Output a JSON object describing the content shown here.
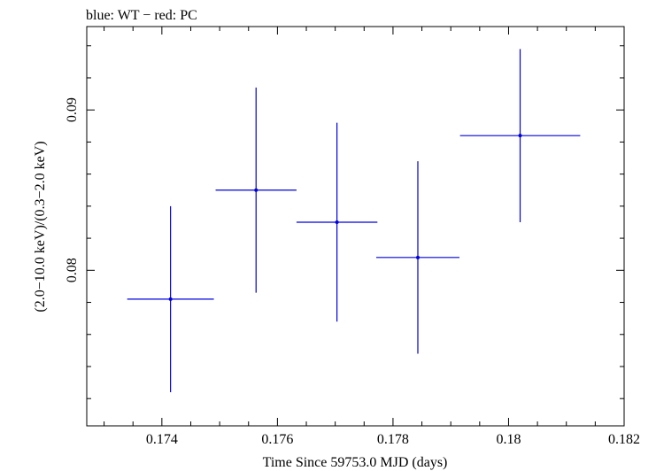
{
  "chart_data": {
    "type": "scatter",
    "title": "blue: WT − red: PC",
    "xlabel": "Time Since 59753.0 MJD (days)",
    "ylabel": "(2.0−10.0 keV)/(0.3−2.0 keV)",
    "xlim": [
      0.1727,
      0.182
    ],
    "ylim": [
      0.0703,
      0.0952
    ],
    "xticks": [
      {
        "value": 0.174,
        "label": "0.174"
      },
      {
        "value": 0.176,
        "label": "0.176"
      },
      {
        "value": 0.178,
        "label": "0.178"
      },
      {
        "value": 0.18,
        "label": "0.18"
      },
      {
        "value": 0.182,
        "label": "0.182"
      }
    ],
    "yticks": [
      {
        "value": 0.08,
        "label": "0.08"
      },
      {
        "value": 0.09,
        "label": "0.09"
      }
    ],
    "x_minor_step": 0.0005,
    "y_minor_step": 0.002,
    "series": [
      {
        "name": "WT",
        "color": "#0000dd",
        "points": [
          {
            "x": 0.17415,
            "xerr": 0.00075,
            "y": 0.0782,
            "yerr_low": 0.0058,
            "yerr_high": 0.0058
          },
          {
            "x": 0.17563,
            "xerr": 0.0007,
            "y": 0.085,
            "yerr_low": 0.0064,
            "yerr_high": 0.0064
          },
          {
            "x": 0.17703,
            "xerr": 0.0007,
            "y": 0.083,
            "yerr_low": 0.0062,
            "yerr_high": 0.0062
          },
          {
            "x": 0.17843,
            "xerr": 0.00072,
            "y": 0.0808,
            "yerr_low": 0.006,
            "yerr_high": 0.006
          },
          {
            "x": 0.1802,
            "xerr": 0.00104,
            "y": 0.0884,
            "yerr_low": 0.0054,
            "yerr_high": 0.0054
          }
        ]
      },
      {
        "name": "PC",
        "color": "#dd0000",
        "points": []
      }
    ]
  }
}
